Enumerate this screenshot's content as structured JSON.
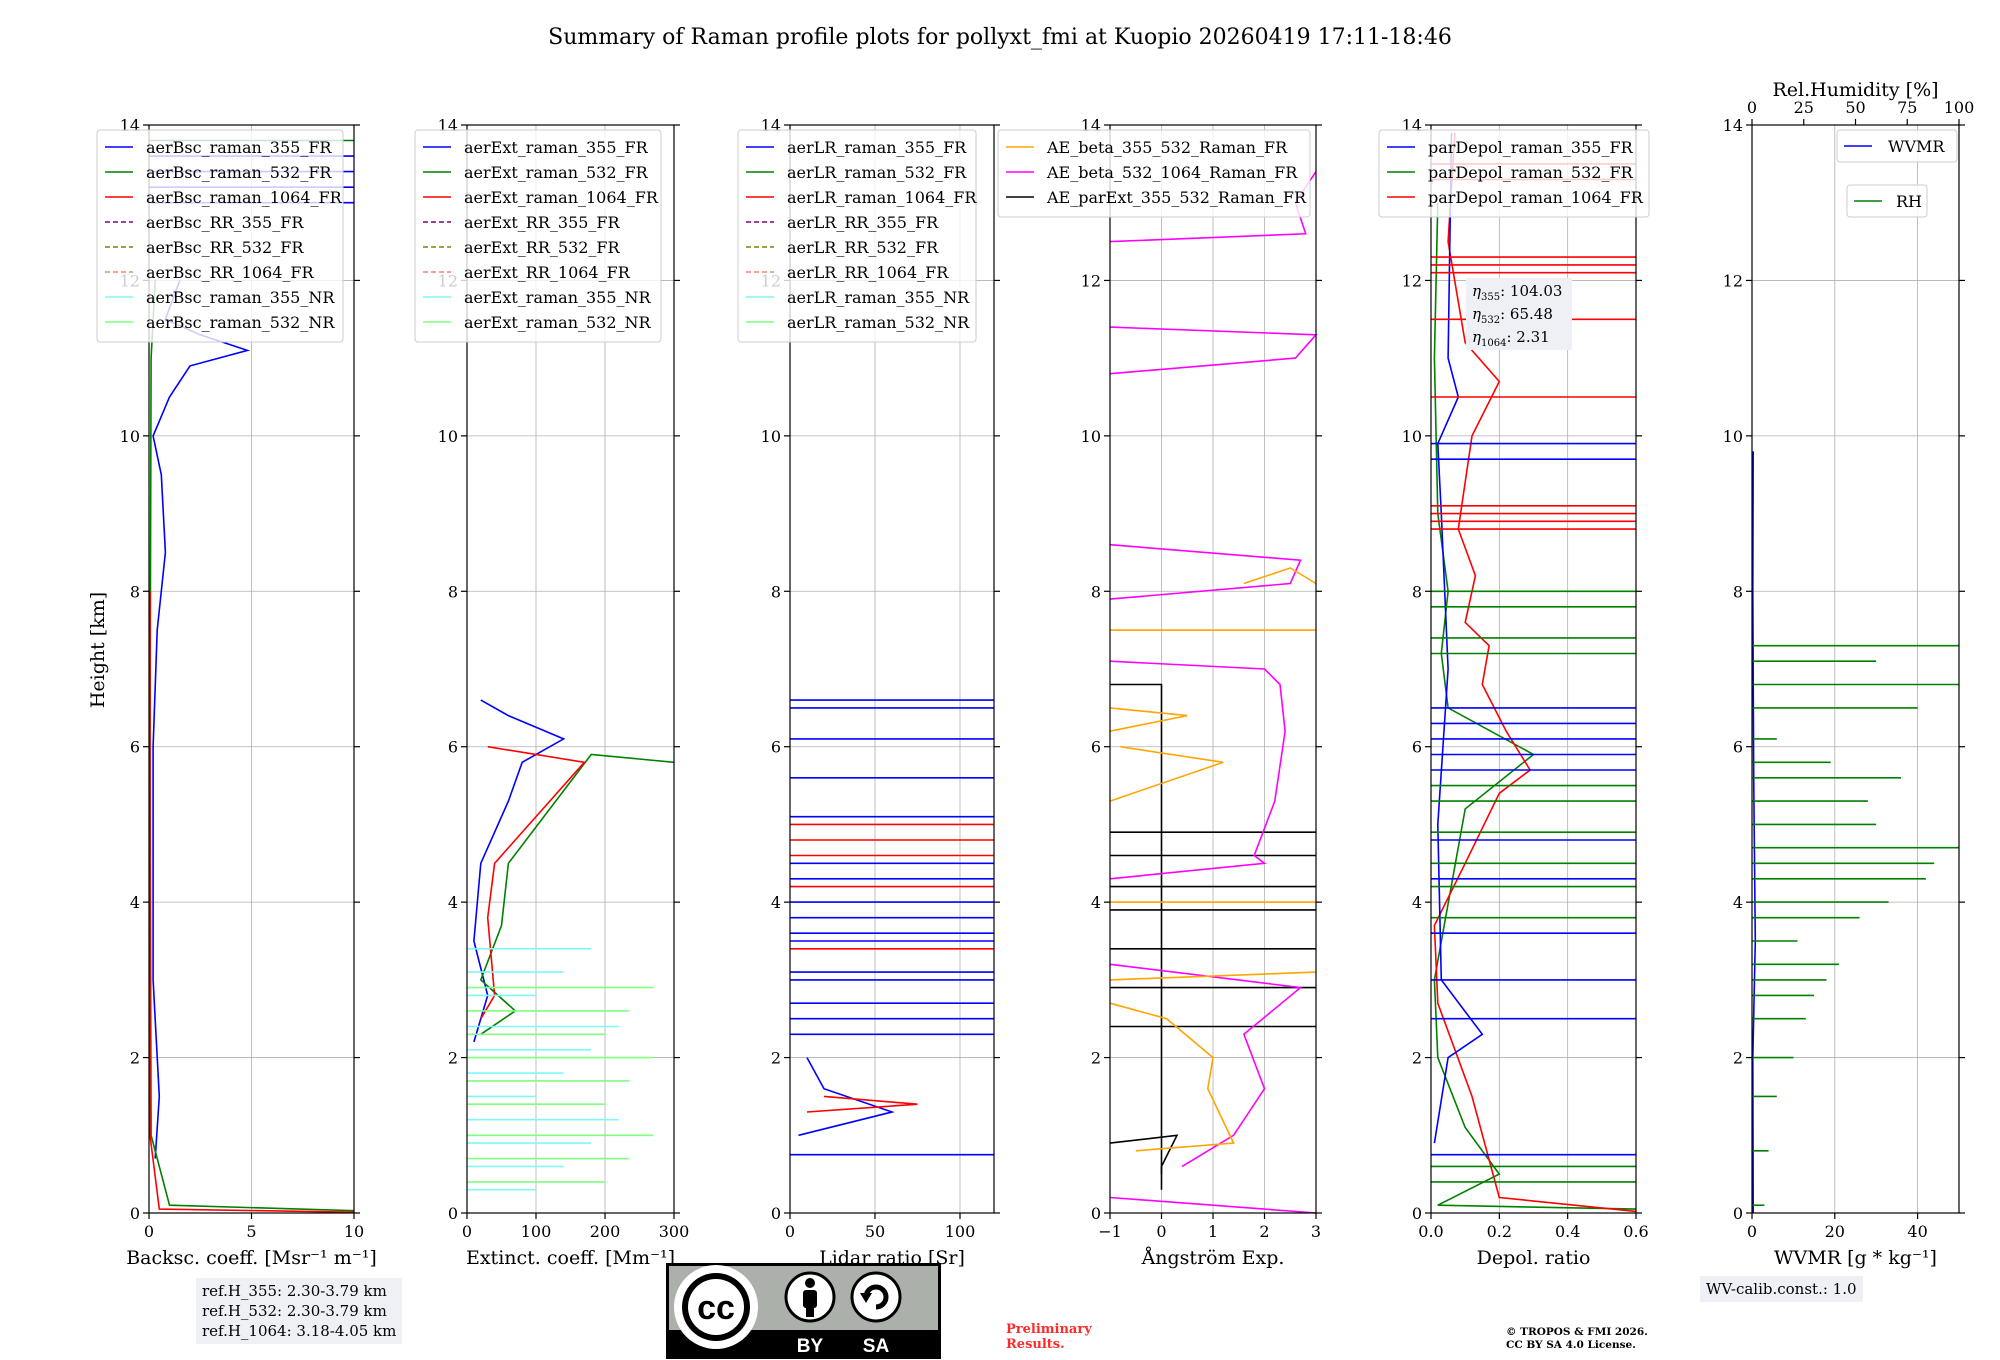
{
  "title": "Summary of Raman profile plots for pollyxt_fmi at Kuopio 20260419 17:11-18:46",
  "ylabel": "Height [km]",
  "colors": {
    "blue": "#0000ff",
    "green": "#008000",
    "red": "#ff0000",
    "purple": "#800080",
    "olive": "#808000",
    "salmon": "#fa8072",
    "cyan": "#7ff7f7",
    "lightgreen": "#80ff80",
    "orange": "#ffa500",
    "magenta": "#ff00ff",
    "black": "#000000"
  },
  "chart_data": [
    {
      "type": "line",
      "id": "bsc",
      "xlabel": "Backsc. coeff. [Msr⁻¹ m⁻¹]",
      "xlim": [
        0,
        10
      ],
      "xticks": [
        0,
        5,
        10
      ],
      "ylim": [
        0,
        14
      ],
      "yticks": [
        0,
        2,
        4,
        6,
        8,
        10,
        12,
        14
      ],
      "legend": [
        "aerBsc_raman_355_FR",
        "aerBsc_raman_532_FR",
        "aerBsc_raman_1064_FR",
        "aerBsc_RR_355_FR",
        "aerBsc_RR_532_FR",
        "aerBsc_RR_1064_FR",
        "aerBsc_raman_355_NR",
        "aerBsc_raman_532_NR"
      ],
      "legend_colors": [
        "blue",
        "green",
        "red",
        "purple",
        "olive",
        "salmon",
        "cyan",
        "lightgreen"
      ],
      "legend_dashed": [
        false,
        false,
        false,
        true,
        true,
        true,
        false,
        false
      ],
      "legend_position": "top-left"
    },
    {
      "type": "line",
      "id": "ext",
      "xlabel": "Extinct. coeff. [Mm⁻¹]",
      "xlim": [
        0,
        300
      ],
      "xticks": [
        0,
        100,
        200,
        300
      ],
      "ylim": [
        0,
        14
      ],
      "yticks": [
        0,
        2,
        4,
        6,
        8,
        10,
        12,
        14
      ],
      "legend": [
        "aerExt_raman_355_FR",
        "aerExt_raman_532_FR",
        "aerExt_raman_1064_FR",
        "aerExt_RR_355_FR",
        "aerExt_RR_532_FR",
        "aerExt_RR_1064_FR",
        "aerExt_raman_355_NR",
        "aerExt_raman_532_NR"
      ],
      "legend_colors": [
        "blue",
        "green",
        "red",
        "purple",
        "olive",
        "salmon",
        "cyan",
        "lightgreen"
      ],
      "legend_dashed": [
        false,
        false,
        false,
        true,
        true,
        true,
        false,
        false
      ],
      "legend_position": "top-left"
    },
    {
      "type": "line",
      "id": "lr",
      "xlabel": "Lidar ratio [Sr]",
      "xlim": [
        0,
        120
      ],
      "xticks": [
        0,
        50,
        100
      ],
      "ylim": [
        0,
        14
      ],
      "yticks": [
        0,
        2,
        4,
        6,
        8,
        10,
        12,
        14
      ],
      "legend": [
        "aerLR_raman_355_FR",
        "aerLR_raman_532_FR",
        "aerLR_raman_1064_FR",
        "aerLR_RR_355_FR",
        "aerLR_RR_532_FR",
        "aerLR_RR_1064_FR",
        "aerLR_raman_355_NR",
        "aerLR_raman_532_NR"
      ],
      "legend_colors": [
        "blue",
        "green",
        "red",
        "purple",
        "olive",
        "salmon",
        "cyan",
        "lightgreen"
      ],
      "legend_dashed": [
        false,
        false,
        false,
        true,
        true,
        true,
        false,
        false
      ],
      "legend_position": "top-left"
    },
    {
      "type": "line",
      "id": "ae",
      "xlabel": "Ångström Exp.",
      "xlim": [
        -1,
        3
      ],
      "xticks": [
        -1,
        0,
        1,
        2,
        3
      ],
      "ylim": [
        0,
        14
      ],
      "yticks": [
        0,
        2,
        4,
        6,
        8,
        10,
        12,
        14
      ],
      "legend": [
        "AE_beta_355_532_Raman_FR",
        "AE_beta_532_1064_Raman_FR",
        "AE_parExt_355_532_Raman_FR"
      ],
      "legend_colors": [
        "orange",
        "magenta",
        "black"
      ],
      "legend_dashed": [
        false,
        false,
        false
      ],
      "legend_position": "top-left"
    },
    {
      "type": "line",
      "id": "dep",
      "xlabel": "Depol. ratio",
      "xlim": [
        0,
        0.6
      ],
      "xticks": [
        0.0,
        0.2,
        0.4,
        0.6
      ],
      "ylim": [
        0,
        14
      ],
      "yticks": [
        0,
        2,
        4,
        6,
        8,
        10,
        12,
        14
      ],
      "legend": [
        "parDepol_raman_355_FR",
        "parDepol_raman_532_FR",
        "parDepol_raman_1064_FR"
      ],
      "legend_colors": [
        "blue",
        "green",
        "red"
      ],
      "legend_dashed": [
        false,
        false,
        false
      ],
      "legend_position": "top-left",
      "annotation": [
        {
          "sym": "η",
          "sub": "355",
          "val": "104.03"
        },
        {
          "sym": "η",
          "sub": "532",
          "val": "65.48"
        },
        {
          "sym": "η",
          "sub": "1064",
          "val": "2.31"
        }
      ]
    },
    {
      "type": "line",
      "id": "wv",
      "xlabel": "WVMR [g * kg⁻¹]",
      "top_xlabel": "Rel.Humidity [%]",
      "xlim": [
        0,
        50
      ],
      "xticks": [
        0,
        20,
        40
      ],
      "top_xlim": [
        0,
        100
      ],
      "top_xticks": [
        0,
        25,
        50,
        75,
        100
      ],
      "ylim": [
        0,
        14
      ],
      "yticks": [
        0,
        2,
        4,
        6,
        8,
        10,
        12,
        14
      ],
      "legend": [
        "WVMR",
        "RH"
      ],
      "legend_colors": [
        "blue",
        "green"
      ],
      "legend_dashed": [
        false,
        false
      ],
      "legend_position": "top-right"
    }
  ],
  "ref_heights": [
    "ref.H_355: 2.30-3.79 km",
    "ref.H_532: 2.30-3.79 km",
    "ref.H_1064: 3.18-4.05 km"
  ],
  "wv_calib": "WV-calib.const.: 1.0",
  "preliminary": [
    "Preliminary",
    "Results."
  ],
  "copyright": [
    "© TROPOS & FMI 2026.",
    "CC BY SA 4.0 License."
  ],
  "license_badge": {
    "top": "cc",
    "left": "BY",
    "right": "SA"
  }
}
